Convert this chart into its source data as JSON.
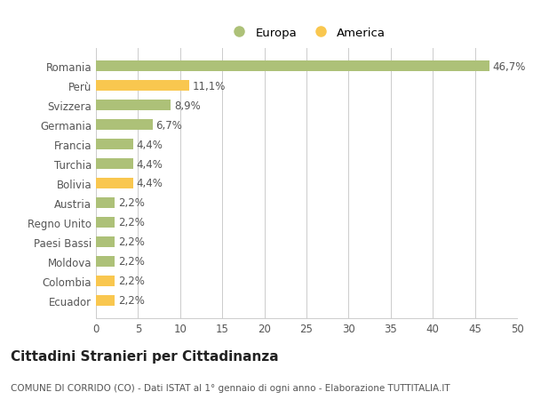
{
  "categories": [
    "Romania",
    "Perù",
    "Svizzera",
    "Germania",
    "Francia",
    "Turchia",
    "Bolivia",
    "Austria",
    "Regno Unito",
    "Paesi Bassi",
    "Moldova",
    "Colombia",
    "Ecuador"
  ],
  "values": [
    46.7,
    11.1,
    8.9,
    6.7,
    4.4,
    4.4,
    4.4,
    2.2,
    2.2,
    2.2,
    2.2,
    2.2,
    2.2
  ],
  "labels": [
    "46,7%",
    "11,1%",
    "8,9%",
    "6,7%",
    "4,4%",
    "4,4%",
    "4,4%",
    "2,2%",
    "2,2%",
    "2,2%",
    "2,2%",
    "2,2%",
    "2,2%"
  ],
  "colors": [
    "#adc178",
    "#f9c74f",
    "#adc178",
    "#adc178",
    "#adc178",
    "#adc178",
    "#f9c74f",
    "#adc178",
    "#adc178",
    "#adc178",
    "#adc178",
    "#f9c74f",
    "#f9c74f"
  ],
  "color_europa": "#adc178",
  "color_america": "#f9c74f",
  "legend_europa": "Europa",
  "legend_america": "America",
  "title": "Cittadini Stranieri per Cittadinanza",
  "subtitle": "COMUNE DI CORRIDO (CO) - Dati ISTAT al 1° gennaio di ogni anno - Elaborazione TUTTITALIA.IT",
  "xlim": [
    0,
    50
  ],
  "xticks": [
    0,
    5,
    10,
    15,
    20,
    25,
    30,
    35,
    40,
    45,
    50
  ],
  "background_color": "#ffffff",
  "grid_color": "#cccccc",
  "bar_height": 0.55,
  "label_fontsize": 8.5,
  "tick_fontsize": 8.5,
  "title_fontsize": 11,
  "subtitle_fontsize": 7.5
}
